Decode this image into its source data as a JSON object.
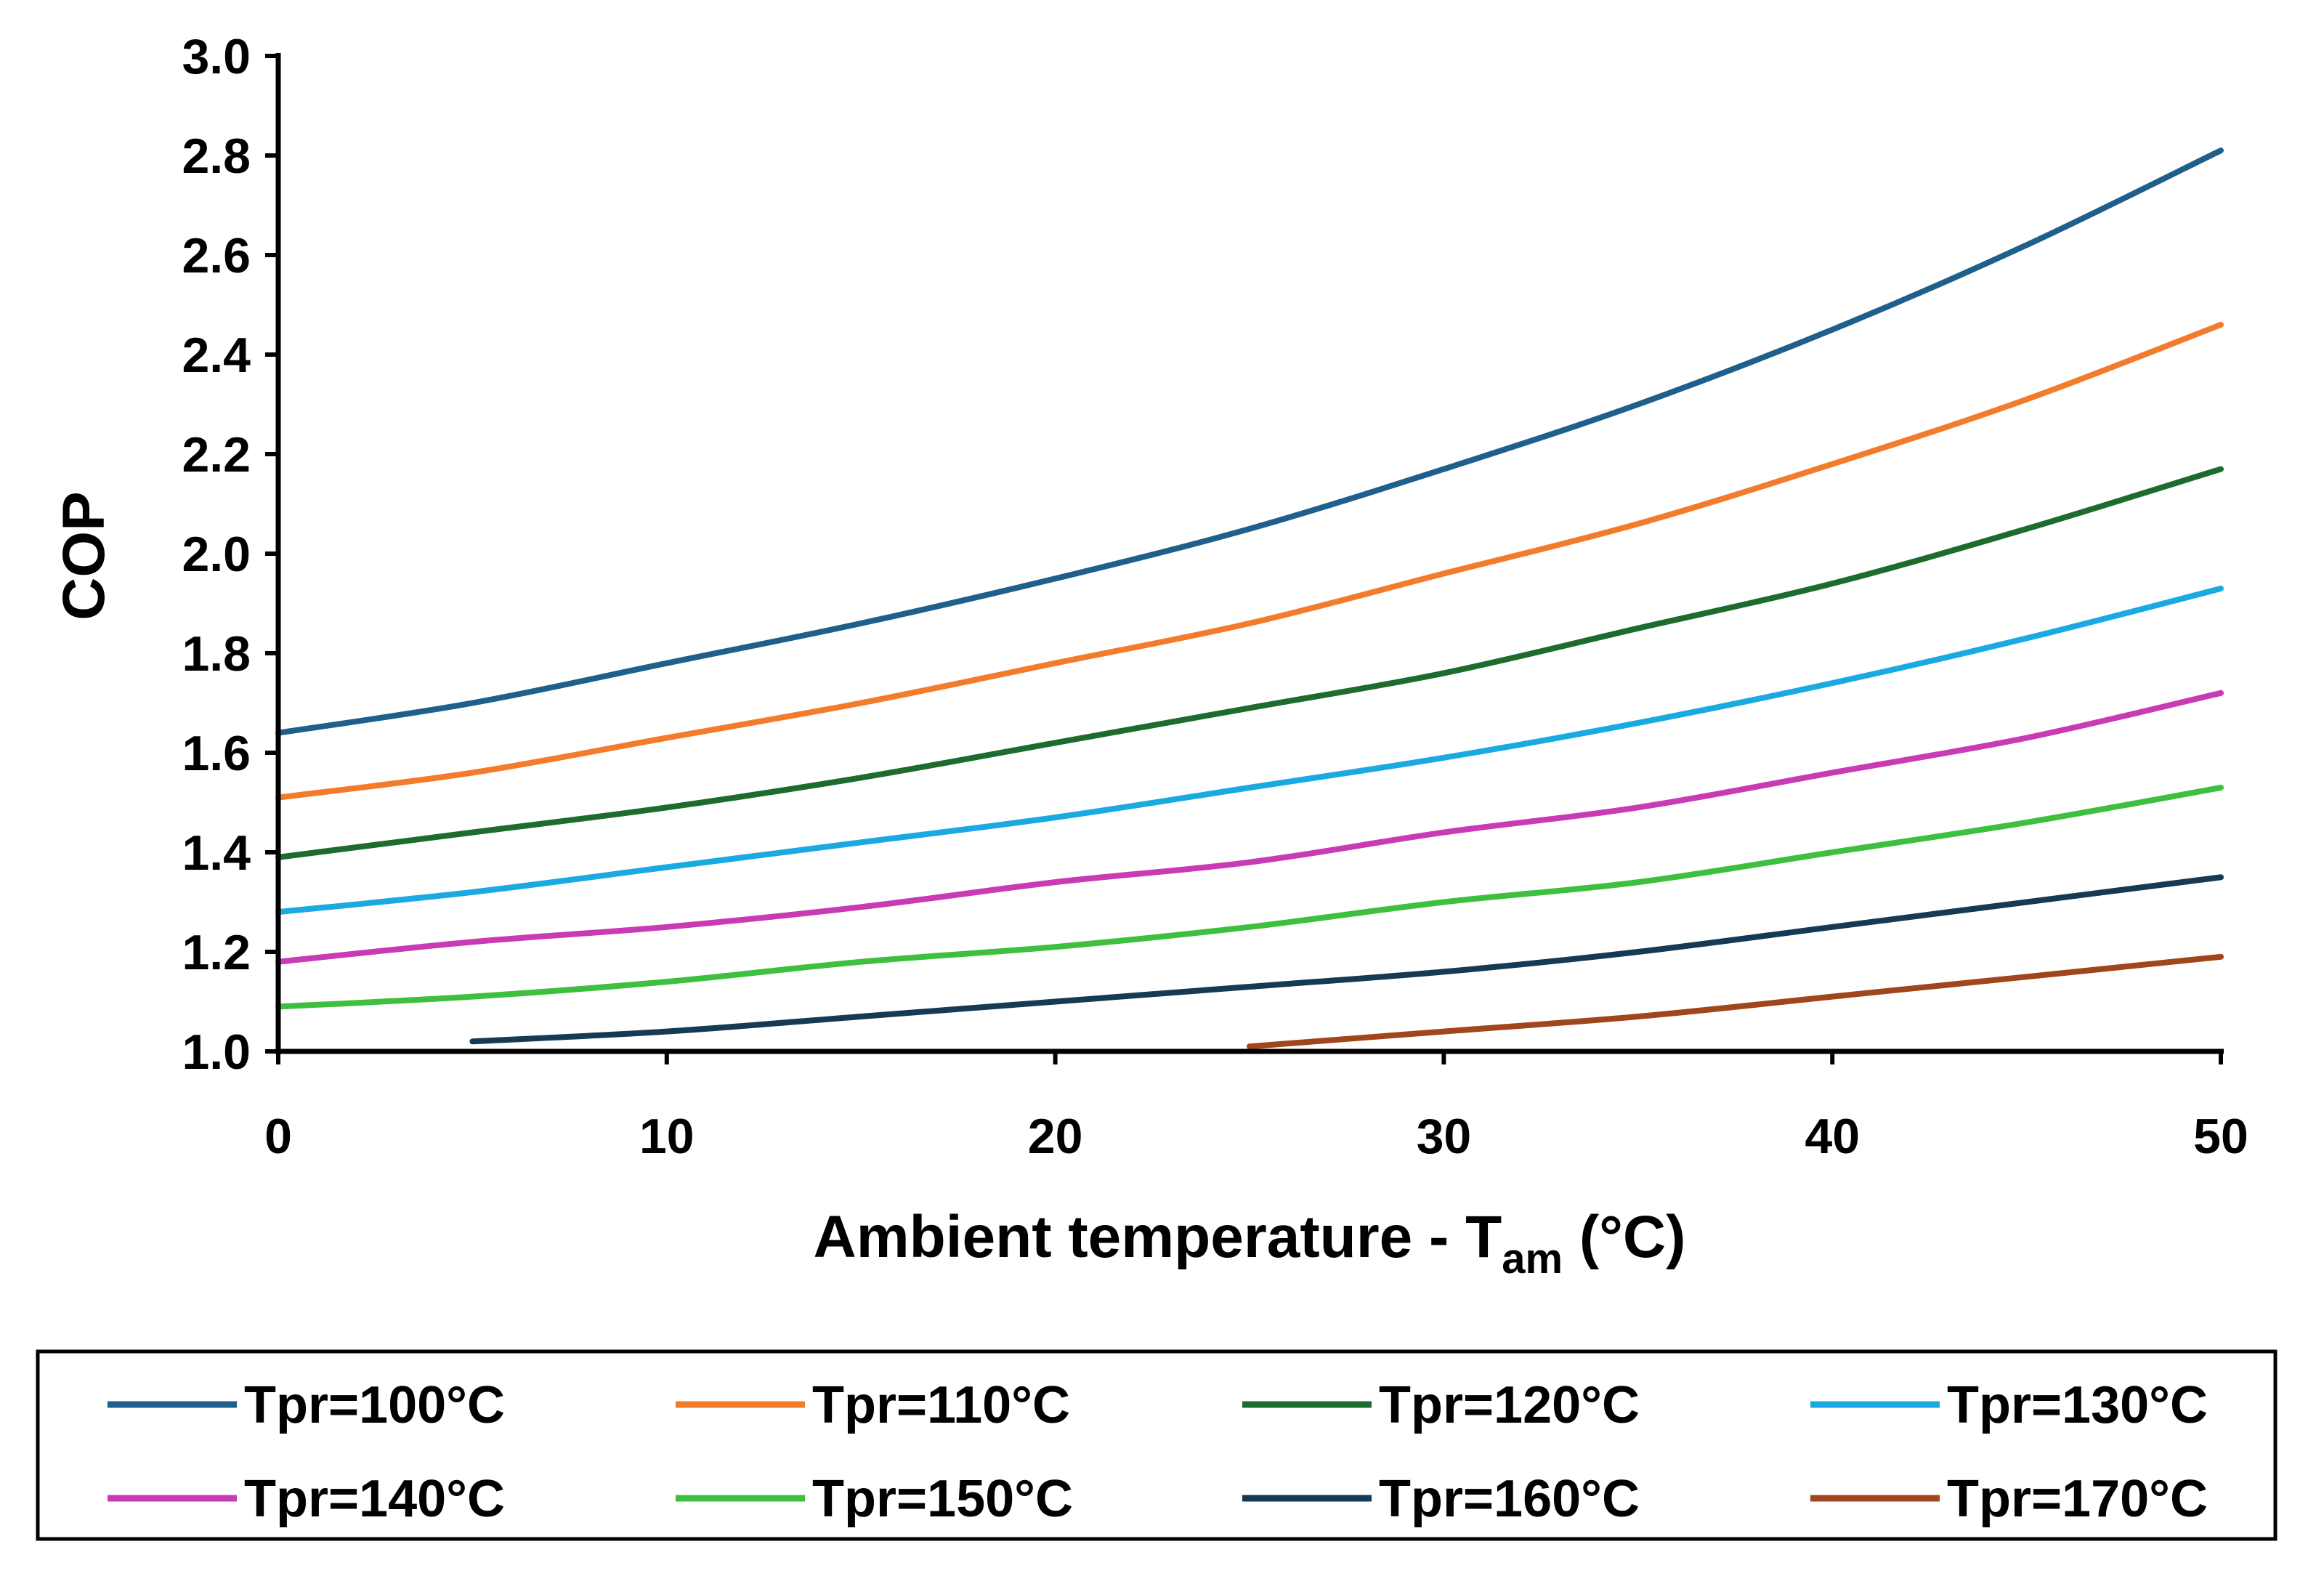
{
  "chart_data": {
    "type": "line",
    "title": "",
    "xlabel_main": "Ambient temperature - T",
    "xlabel_sub": "am",
    "xlabel_unit": " (°C)",
    "ylabel": "COP",
    "xlim": [
      0,
      50
    ],
    "ylim": [
      1.0,
      3.0
    ],
    "x_ticks": [
      0,
      10,
      20,
      30,
      40,
      50
    ],
    "y_ticks": [
      "1.0",
      "1.2",
      "1.4",
      "1.6",
      "1.8",
      "2.0",
      "2.2",
      "2.4",
      "2.6",
      "2.8",
      "3.0"
    ],
    "grid": false,
    "legend_position": "bottom",
    "series": [
      {
        "name": "Tpr=100°C",
        "color": "#1f5f8b",
        "x": [
          0,
          5,
          10,
          15,
          20,
          25,
          30,
          35,
          40,
          45,
          50
        ],
        "y": [
          1.64,
          1.7,
          1.78,
          1.86,
          1.95,
          2.05,
          2.17,
          2.3,
          2.45,
          2.62,
          2.81
        ]
      },
      {
        "name": "Tpr=110°C",
        "color": "#f37b2c",
        "x": [
          0,
          5,
          10,
          15,
          20,
          25,
          30,
          35,
          40,
          45,
          50
        ],
        "y": [
          1.51,
          1.56,
          1.63,
          1.7,
          1.78,
          1.86,
          1.96,
          2.06,
          2.18,
          2.31,
          2.46
        ]
      },
      {
        "name": "Tpr=120°C",
        "color": "#1d6b2e",
        "x": [
          0,
          5,
          10,
          15,
          20,
          25,
          30,
          35,
          40,
          45,
          50
        ],
        "y": [
          1.39,
          1.44,
          1.49,
          1.55,
          1.62,
          1.69,
          1.76,
          1.85,
          1.94,
          2.05,
          2.17
        ]
      },
      {
        "name": "Tpr=130°C",
        "color": "#1aa9e1",
        "x": [
          0,
          5,
          10,
          15,
          20,
          25,
          30,
          35,
          40,
          45,
          50
        ],
        "y": [
          1.28,
          1.32,
          1.37,
          1.42,
          1.47,
          1.53,
          1.59,
          1.66,
          1.74,
          1.83,
          1.93
        ]
      },
      {
        "name": "Tpr=140°C",
        "color": "#c83bb5",
        "x": [
          0,
          5,
          10,
          15,
          20,
          25,
          30,
          35,
          40,
          45,
          50
        ],
        "y": [
          1.18,
          1.22,
          1.25,
          1.29,
          1.34,
          1.38,
          1.44,
          1.49,
          1.56,
          1.63,
          1.72
        ]
      },
      {
        "name": "Tpr=150°C",
        "color": "#3fbf3f",
        "x": [
          0,
          5,
          10,
          15,
          20,
          25,
          30,
          35,
          40,
          45,
          50
        ],
        "y": [
          1.09,
          1.11,
          1.14,
          1.18,
          1.21,
          1.25,
          1.3,
          1.34,
          1.4,
          1.46,
          1.53
        ]
      },
      {
        "name": "Tpr=160°C",
        "color": "#143a55",
        "x": [
          5,
          10,
          15,
          20,
          25,
          30,
          35,
          40,
          45,
          50
        ],
        "y": [
          1.02,
          1.04,
          1.07,
          1.1,
          1.13,
          1.16,
          1.2,
          1.25,
          1.3,
          1.35
        ]
      },
      {
        "name": "Tpr=170°C",
        "color": "#a0451c",
        "x": [
          25,
          30,
          35,
          40,
          45,
          50
        ],
        "y": [
          1.01,
          1.04,
          1.07,
          1.11,
          1.15,
          1.19
        ]
      }
    ]
  }
}
